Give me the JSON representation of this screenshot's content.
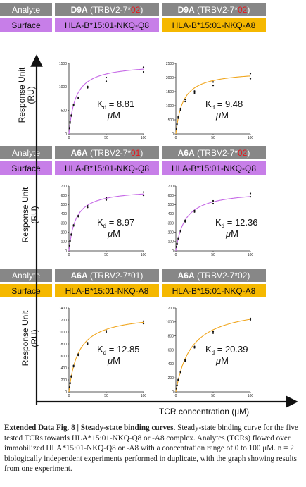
{
  "colors": {
    "header_bg": "#878787",
    "purple": "#c77ee8",
    "orange": "#f5b800",
    "highlight": "#e8141b",
    "purple_curve": "#c567e6",
    "orange_curve": "#f0a51c"
  },
  "rows": [
    {
      "analyte_label": "Analyte",
      "surface_label": "Surface",
      "analytes": [
        {
          "bold": "D9A",
          "prefix": " (TRBV2-7*",
          "allele": "02",
          "suffix": ")",
          "allele_red": true
        },
        {
          "bold": "D9A",
          "prefix": " (TRBV2-7*",
          "allele": "02",
          "suffix": ")",
          "allele_red": true
        }
      ],
      "surfaces": [
        {
          "text": "HLA-B*15:01-NKQ-Q8",
          "color": "purple"
        },
        {
          "text": "HLA-B*15:01-NKQ-A8",
          "color": "orange"
        }
      ]
    },
    {
      "analyte_label": "Analyte",
      "surface_label": "Surface",
      "analytes": [
        {
          "bold": "A6A",
          "prefix": " (TRBV2-7*",
          "allele": "01",
          "suffix": ")",
          "allele_red": true
        },
        {
          "bold": "A6A",
          "prefix": " (TRBV2-7*",
          "allele": "02",
          "suffix": ")",
          "allele_red": true
        }
      ],
      "surfaces": [
        {
          "text": "HLA-B*15:01-NKQ-Q8",
          "color": "purple"
        },
        {
          "text": "HLA-B*15:01-NKQ-Q8",
          "color": "purple"
        }
      ]
    },
    {
      "analyte_label": "Analyte",
      "surface_label": "Surface",
      "analytes": [
        {
          "bold": "A6A",
          "prefix": " (TRBV2-7*",
          "allele": "01",
          "suffix": ")",
          "allele_red": false
        },
        {
          "bold": "A6A",
          "prefix": " (TRBV2-7*",
          "allele": "02",
          "suffix": ")",
          "allele_red": false
        }
      ],
      "surfaces": [
        {
          "text": "HLA-B*15:01-NKQ-A8",
          "color": "orange"
        },
        {
          "text": "HLA-B*15:01-NKQ-A8",
          "color": "orange"
        }
      ]
    }
  ],
  "axis_labels": {
    "ylabel_line1": "Response Unit",
    "ylabel_line2": "(RU)",
    "xlabel": "TCR concentration (μM)"
  },
  "chart_data": [
    {
      "type": "scatter",
      "title": "D9A (TRBV2-7*02) on HLA-B*15:01-NKQ-Q8",
      "color": "purple",
      "xlim": [
        0,
        100
      ],
      "xticks": [
        0,
        50,
        100
      ],
      "ylim": [
        0,
        1500
      ],
      "yticks": [
        0,
        500,
        1000,
        1500
      ],
      "kd_label": "8.81",
      "unit": "μM",
      "fit": {
        "Rmax": 1500,
        "Kd": 8.81
      },
      "x": [
        0.78,
        1.56,
        3.13,
        6.25,
        12.5,
        25,
        50,
        100,
        0.78,
        1.56,
        3.13,
        6.25,
        12.5,
        25,
        50,
        100
      ],
      "y": [
        115,
        230,
        400,
        620,
        780,
        980,
        1120,
        1320,
        130,
        255,
        380,
        600,
        760,
        1010,
        1200,
        1420
      ]
    },
    {
      "type": "scatter",
      "title": "D9A (TRBV2-7*02) on HLA-B*15:01-NKQ-A8",
      "color": "orange",
      "xlim": [
        0,
        100
      ],
      "xticks": [
        0,
        50,
        100
      ],
      "ylim": [
        0,
        2500
      ],
      "yticks": [
        0,
        500,
        1000,
        1500,
        2000,
        2500
      ],
      "kd_label": "9.48",
      "unit": "μM",
      "fit": {
        "Rmax": 2250,
        "Kd": 9.48
      },
      "x": [
        0.78,
        1.56,
        3.13,
        6.25,
        12.5,
        25,
        50,
        100,
        0.78,
        1.56,
        3.13,
        6.25,
        12.5,
        25,
        50,
        100
      ],
      "y": [
        170,
        320,
        560,
        850,
        1150,
        1450,
        1720,
        1960,
        190,
        350,
        600,
        900,
        1220,
        1520,
        1840,
        2140
      ]
    },
    {
      "type": "scatter",
      "title": "A6A (TRBV2-7*01) on HLA-B*15:01-NKQ-Q8",
      "color": "purple",
      "xlim": [
        0,
        100
      ],
      "xticks": [
        0,
        50,
        100
      ],
      "ylim": [
        0,
        700
      ],
      "yticks": [
        0,
        100,
        200,
        300,
        400,
        500,
        600,
        700
      ],
      "kd_label": "8.97",
      "unit": "μM",
      "fit": {
        "Rmax": 670,
        "Kd": 8.97
      },
      "x": [
        0.78,
        1.56,
        3.13,
        6.25,
        12.5,
        25,
        50,
        100,
        0.78,
        1.56,
        3.13,
        6.25,
        12.5,
        25,
        50,
        100
      ],
      "y": [
        55,
        100,
        170,
        270,
        370,
        470,
        550,
        600,
        60,
        110,
        180,
        280,
        380,
        485,
        575,
        635
      ]
    },
    {
      "type": "scatter",
      "title": "A6A (TRBV2-7*02) on HLA-B*15:01-NKQ-Q8",
      "color": "purple",
      "xlim": [
        0,
        100
      ],
      "xticks": [
        0,
        50,
        100
      ],
      "ylim": [
        0,
        700
      ],
      "yticks": [
        0,
        100,
        200,
        300,
        400,
        500,
        600,
        700
      ],
      "kd_label": "12.36",
      "unit": "μM",
      "fit": {
        "Rmax": 660,
        "Kd": 12.36
      },
      "x": [
        0.78,
        1.56,
        3.13,
        6.25,
        12.5,
        25,
        50,
        100,
        0.78,
        1.56,
        3.13,
        6.25,
        12.5,
        25,
        50,
        100
      ],
      "y": [
        40,
        75,
        130,
        210,
        315,
        420,
        510,
        585,
        45,
        80,
        140,
        220,
        330,
        435,
        540,
        620
      ]
    },
    {
      "type": "scatter",
      "title": "A6A (TRBV2-7*01) on HLA-B*15:01-NKQ-A8",
      "color": "orange",
      "xlim": [
        0,
        100
      ],
      "xticks": [
        0,
        50,
        100
      ],
      "ylim": [
        0,
        1400
      ],
      "yticks": [
        0,
        200,
        400,
        600,
        800,
        1000,
        1200,
        1400
      ],
      "kd_label": "12.85",
      "unit": "μM",
      "fit": {
        "Rmax": 1310,
        "Kd": 12.85
      },
      "x": [
        0.78,
        1.56,
        3.13,
        6.25,
        12.5,
        25,
        50,
        100,
        0.78,
        1.56,
        3.13,
        6.25,
        12.5,
        25,
        50,
        100
      ],
      "y": [
        75,
        140,
        250,
        420,
        610,
        800,
        1000,
        1140,
        80,
        150,
        265,
        440,
        630,
        820,
        1020,
        1180
      ]
    },
    {
      "type": "scatter",
      "title": "A6A (TRBV2-7*02) on HLA-B*15:01-NKQ-A8",
      "color": "orange",
      "xlim": [
        0,
        100
      ],
      "xticks": [
        0,
        50,
        100
      ],
      "ylim": [
        0,
        1200
      ],
      "yticks": [
        0,
        200,
        400,
        600,
        800,
        1000,
        1200
      ],
      "kd_label": "20.39",
      "unit": "μM",
      "fit": {
        "Rmax": 1250,
        "Kd": 20.39
      },
      "x": [
        0.78,
        1.56,
        3.13,
        6.25,
        12.5,
        25,
        50,
        100,
        0.78,
        1.56,
        3.13,
        6.25,
        12.5,
        25,
        50,
        100
      ],
      "y": [
        45,
        90,
        165,
        280,
        440,
        630,
        840,
        1030,
        50,
        95,
        175,
        290,
        455,
        650,
        860,
        1050
      ]
    }
  ],
  "caption": {
    "bold": "Extended Data Fig. 8 | Steady-state binding curves.",
    "text": " Steady-state binding curve for the five tested TCRs towards HLA*15:01-NKQ-Q8 or -A8 complex. Analytes (TCRs) flowed over immobilized HLA*15:01-NKQ-Q8 or -A8 with a concentration range of 0 to 100 μM. n = 2 biologically independent experiments performed in duplicate, with the graph showing results from one experiment."
  }
}
